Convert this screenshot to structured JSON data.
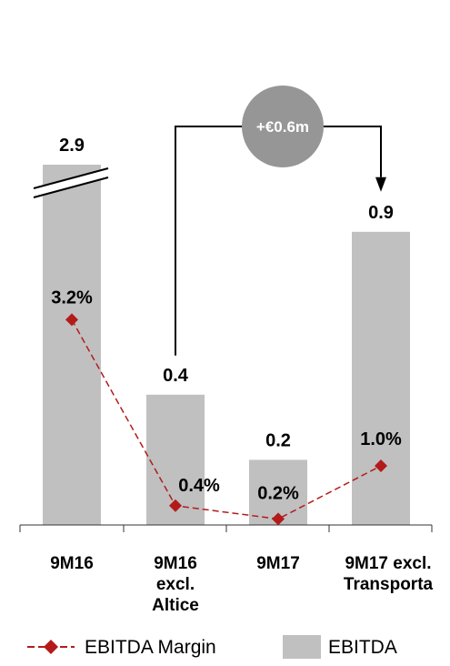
{
  "chart_data": {
    "type": "bar",
    "categories": [
      [
        "9M16"
      ],
      [
        "9M16",
        "excl.",
        "Altice"
      ],
      [
        "9M17"
      ],
      [
        "9M17 excl.",
        "Transporta"
      ]
    ],
    "series": [
      {
        "name": "EBITDA",
        "kind": "bar",
        "values": [
          2.9,
          0.4,
          0.2,
          0.9
        ],
        "labels": [
          "2.9",
          "0.4",
          "0.2",
          "0.9"
        ],
        "color": "#c0c0c0"
      },
      {
        "name": "EBITDA Margin",
        "kind": "line",
        "values": [
          3.2,
          0.4,
          0.2,
          1.0
        ],
        "labels": [
          "3.2%",
          "0.4%",
          "0.2%",
          "1.0%"
        ],
        "color": "#b31b1b"
      }
    ],
    "broken_axis_on": "9M16",
    "annotation": {
      "text": "+€0.6m",
      "from": "9M16 excl. Altice",
      "to": "9M17 excl. Transporta",
      "color": "#969696"
    },
    "legend_position": "bottom",
    "grid": false
  }
}
